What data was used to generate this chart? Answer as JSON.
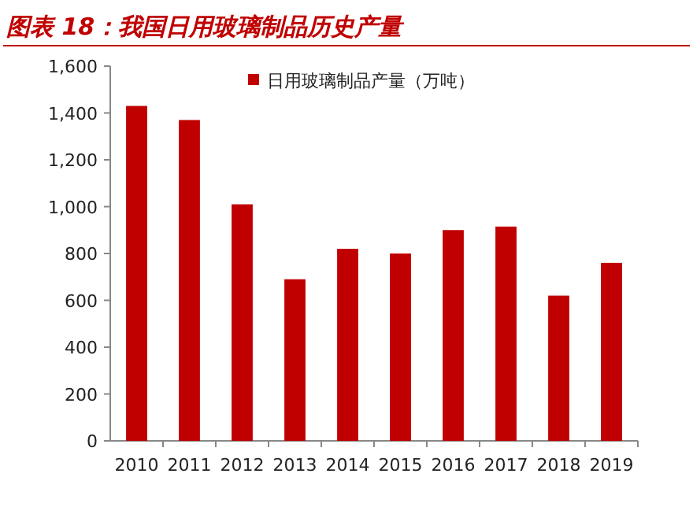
{
  "chart_data": {
    "type": "bar",
    "title": "图表 18：我国日用玻璃制品历史产量",
    "categories": [
      "2010",
      "2011",
      "2012",
      "2013",
      "2014",
      "2015",
      "2016",
      "2017",
      "2018",
      "2019"
    ],
    "series": [
      {
        "name": "日用玻璃制品产量（万吨）",
        "color": "#c00000",
        "values": [
          1430,
          1370,
          1010,
          690,
          820,
          800,
          900,
          915,
          620,
          760
        ]
      }
    ],
    "ylim": [
      0,
      1600
    ],
    "yticks": [
      {
        "value": 0,
        "label": "0"
      },
      {
        "value": 200,
        "label": "200"
      },
      {
        "value": 400,
        "label": "400"
      },
      {
        "value": 600,
        "label": "600"
      },
      {
        "value": 800,
        "label": "800"
      },
      {
        "value": 1000,
        "label": "1,000"
      },
      {
        "value": 1200,
        "label": "1,200"
      },
      {
        "value": 1400,
        "label": "1,400"
      },
      {
        "value": 1600,
        "label": "1,600"
      }
    ],
    "legend": "top"
  }
}
